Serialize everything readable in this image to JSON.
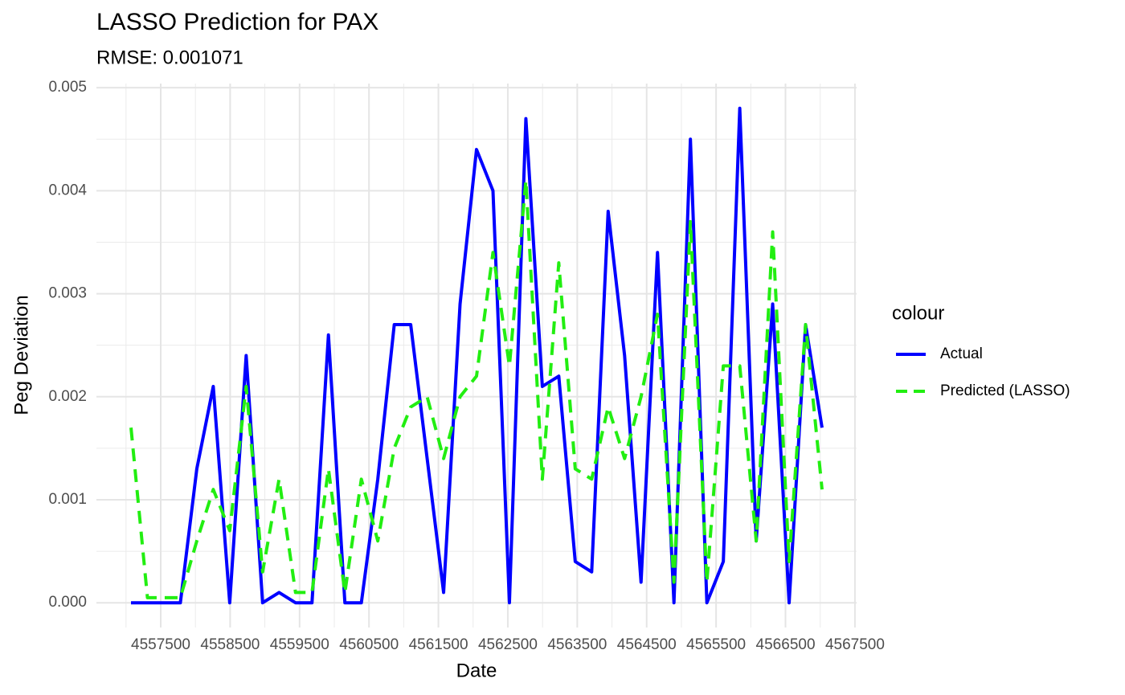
{
  "chart_data": {
    "type": "line",
    "title": "LASSO Prediction for PAX",
    "subtitle": "RMSE: 0.001071",
    "x_label": "Date",
    "y_label": "Peg Deviation",
    "legend_title": "colour",
    "legend_position": "right",
    "grid": true,
    "x": [
      4557072,
      4557309,
      4557546,
      4557783,
      4558020,
      4558257,
      4558494,
      4558731,
      4558968,
      4559205,
      4559442,
      4559679,
      4559916,
      4560153,
      4560390,
      4560627,
      4560864,
      4561101,
      4561338,
      4561575,
      4561812,
      4562049,
      4562286,
      4562523,
      4562760,
      4562997,
      4563234,
      4563471,
      4563708,
      4563945,
      4564182,
      4564419,
      4564656,
      4564893,
      4565130,
      4565367,
      4565604,
      4565841,
      4566078,
      4566315,
      4566552,
      4566789,
      4567026
    ],
    "series": [
      {
        "name": "Actual",
        "color": "#0000ff",
        "dashed": false,
        "values": [
          0,
          0,
          0,
          0,
          0.0013,
          0.0021,
          0,
          0.0024,
          0,
          0.0001,
          0,
          0,
          0.0026,
          0,
          0,
          0.0012,
          0.0027,
          0.0027,
          0.0014,
          0.0001,
          0.0029,
          0.0044,
          0.004,
          0,
          0.0047,
          0.0021,
          0.0022,
          0.0004,
          0.0003,
          0.0038,
          0.0024,
          0.0002,
          0.0034,
          0,
          0.0045,
          0,
          0.0004,
          0.0048,
          0.0006,
          0.0029,
          0,
          0.0027,
          0.0017
        ]
      },
      {
        "name": "Predicted (LASSO)",
        "color": "#22ee11",
        "dashed": true,
        "values": [
          0.0017,
          5e-05,
          5e-05,
          5e-05,
          0.0006,
          0.0011,
          0.0007,
          0.0021,
          0.0003,
          0.0012,
          0.0001,
          0.0001,
          0.0013,
          0.0001,
          0.0012,
          0.0006,
          0.0015,
          0.0019,
          0.002,
          0.0014,
          0.002,
          0.0022,
          0.0034,
          0.0023,
          0.0041,
          0.0012,
          0.0033,
          0.0013,
          0.0012,
          0.0019,
          0.0014,
          0.002,
          0.0028,
          0.0002,
          0.0037,
          0.0002,
          0.0023,
          0.0023,
          0.0006,
          0.0036,
          0.0004,
          0.0027,
          0.0011
        ]
      }
    ],
    "xlim": [
      4556574,
      4567524
    ],
    "xticks": [
      4557500,
      4558500,
      4559500,
      4560500,
      4561500,
      4562500,
      4563500,
      4564500,
      4565500,
      4566500,
      4567500
    ],
    "ylim": [
      -0.00024,
      0.00504
    ],
    "yticks": [
      {
        "value": 0,
        "label": "0.000"
      },
      {
        "value": 0.001,
        "label": "0.001"
      },
      {
        "value": 0.002,
        "label": "0.002"
      },
      {
        "value": 0.003,
        "label": "0.003"
      },
      {
        "value": 0.004,
        "label": "0.004"
      },
      {
        "value": 0.005,
        "label": "0.005"
      }
    ]
  }
}
